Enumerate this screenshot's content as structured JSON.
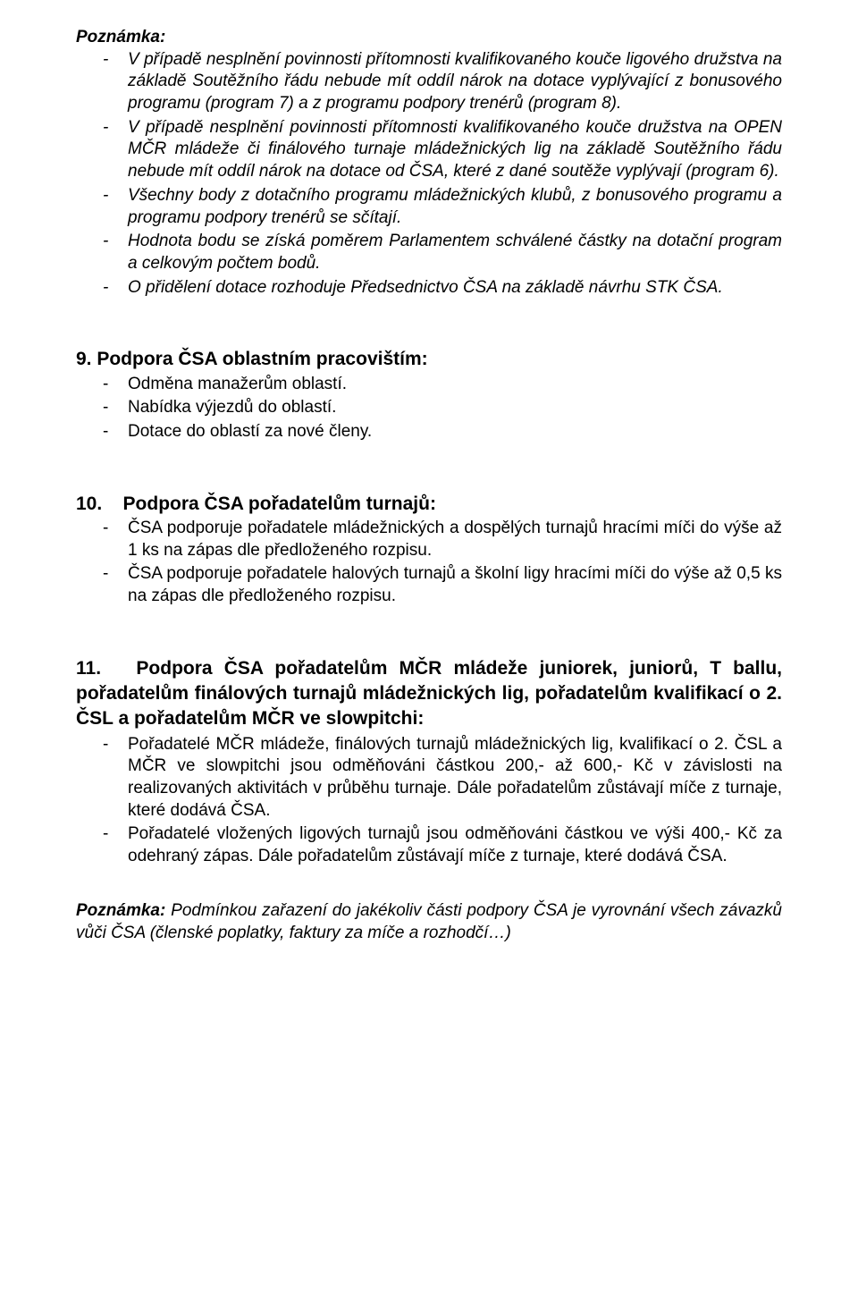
{
  "note_label": "Poznámka:",
  "n1": "V případě nesplnění povinnosti přítomnosti kvalifikovaného kouče ligového družstva na základě Soutěžního řádu nebude mít oddíl nárok na dotace vyplývající z bonusového programu (program 7) a z programu podpory trenérů (program 8).",
  "n2": "V případě nesplnění povinnosti přítomnosti kvalifikovaného kouče družstva na OPEN MČR mládeže či finálového turnaje mládežnických lig na základě Soutěžního řádu nebude mít oddíl nárok na dotace od ČSA, které z dané soutěže vyplývají (program 6).",
  "n3": "Všechny body z dotačního programu mládežnických klubů, z bonusového programu a programu podpory trenérů se sčítají.",
  "n4": "Hodnota bodu se získá poměrem Parlamentem schválené částky na dotační program a celkovým počtem bodů.",
  "n5": "O přidělení dotace rozhoduje Předsednictvo ČSA na základě návrhu STK ČSA.",
  "h9": "9. Podpora ČSA oblastním pracovištím:",
  "s9_1": "Odměna manažerům oblastí.",
  "s9_2": "Nabídka výjezdů do oblastí.",
  "s9_3": "Dotace do oblastí za nové členy.",
  "h10": "10.    Podpora ČSA pořadatelům turnajů:",
  "s10_1": "ČSA podporuje pořadatele mládežnických a dospělých turnajů hracími míči do výše až 1 ks na zápas dle předloženého rozpisu.",
  "s10_2": "ČSA podporuje pořadatele halových turnajů a školní ligy hracími míči do výše až 0,5 ks na zápas dle předloženého rozpisu.",
  "h11": "11.   Podpora ČSA pořadatelům MČR mládeže juniorek, juniorů, T ballu, pořadatelům finálových turnajů mládežnických lig, pořadatelům kvalifikací o 2. ČSL a pořadatelům MČR ve slowpitchi:",
  "s11_1": "Pořadatelé MČR mládeže, finálových turnajů mládežnických lig, kvalifikací o 2. ČSL a MČR ve slowpitchi jsou odměňováni částkou 200,- až 600,- Kč v závislosti na realizovaných aktivitách v průběhu turnaje. Dále pořadatelům zůstávají míče z turnaje, které dodává ČSA.",
  "s11_2": "Pořadatelé vložených ligových turnajů jsou odměňováni částkou ve výši 400,- Kč za odehraný zápas. Dále pořadatelům zůstávají míče z turnaje, které dodává ČSA.",
  "foot_label": "Poznámka:",
  "foot_text": " Podmínkou zařazení do jakékoliv části podpory ČSA je vyrovnání všech závazků vůči ČSA (členské poplatky, faktury za míče a rozhodčí…)"
}
